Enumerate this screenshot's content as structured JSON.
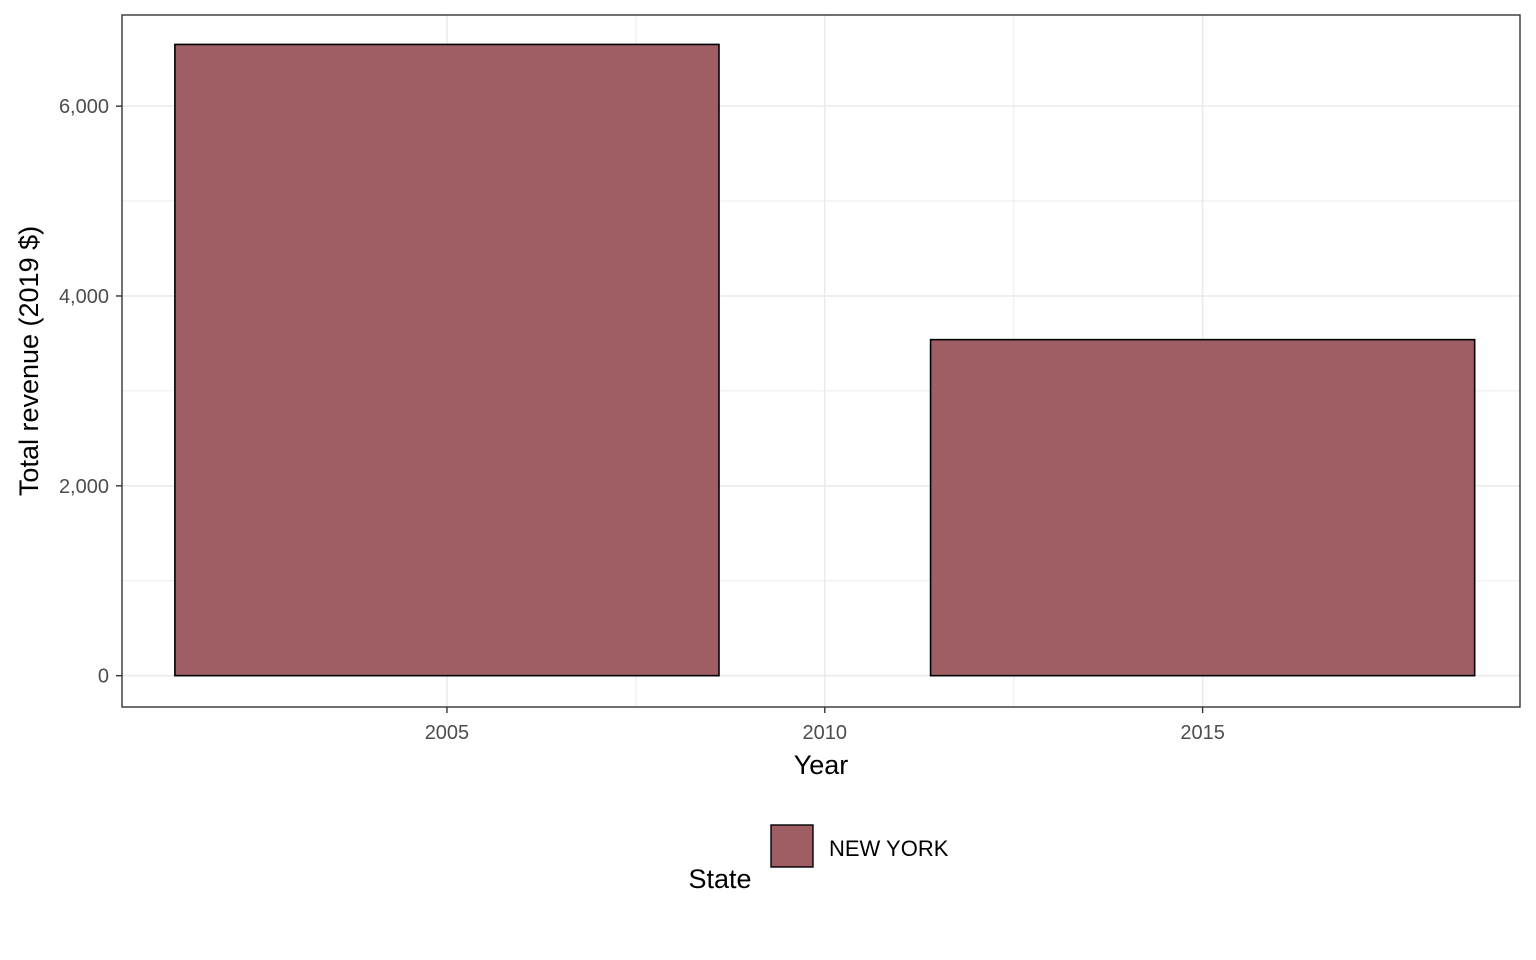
{
  "chart_data": {
    "type": "bar",
    "x": [
      2005,
      2015
    ],
    "x_tick_labels": [
      "2005",
      "2010",
      "2015"
    ],
    "x_ticks": [
      2005,
      2010,
      2015
    ],
    "xlim": [
      2000.7,
      2019.2
    ],
    "y_tick_labels": [
      "0",
      "2,000",
      "4,000",
      "6,000"
    ],
    "y_ticks": [
      0,
      2000,
      4000,
      6000
    ],
    "ylim": [
      -330,
      6960
    ],
    "bar_width_years": 7.2,
    "series": [
      {
        "name": "NEW YORK",
        "values": [
          6650,
          3540
        ],
        "color": "#9e5e63"
      }
    ],
    "xlabel": "Year",
    "ylabel": "Total revenue (2019 $)",
    "legend": {
      "title": "State",
      "position": "bottom",
      "entries": [
        "NEW YORK"
      ]
    },
    "grid": true
  }
}
